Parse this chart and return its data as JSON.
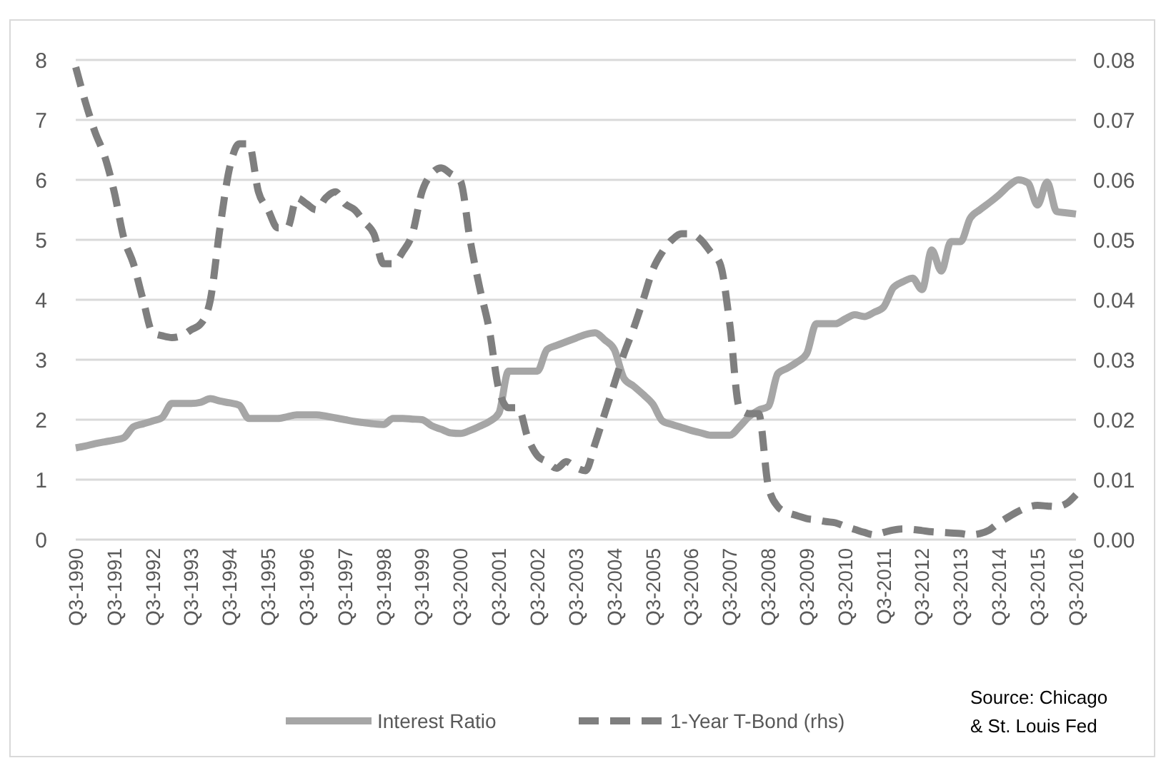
{
  "chart_data": {
    "type": "line",
    "categories": [
      "Q3-1990",
      null,
      null,
      null,
      "Q3-1991",
      null,
      null,
      null,
      "Q3-1992",
      null,
      null,
      null,
      "Q3-1993",
      null,
      null,
      null,
      "Q3-1994",
      null,
      null,
      null,
      "Q3-1995",
      null,
      null,
      null,
      "Q3-1996",
      null,
      null,
      null,
      "Q3-1997",
      null,
      null,
      null,
      "Q3-1998",
      null,
      null,
      null,
      "Q3-1999",
      null,
      null,
      null,
      "Q3-2000",
      null,
      null,
      null,
      "Q3-2001",
      null,
      null,
      null,
      "Q3-2002",
      null,
      null,
      null,
      "Q3-2003",
      null,
      null,
      null,
      "Q3-2004",
      null,
      null,
      null,
      "Q3-2005",
      null,
      null,
      null,
      "Q3-2006",
      null,
      null,
      null,
      "Q3-2007",
      null,
      null,
      null,
      "Q3-2008",
      null,
      null,
      null,
      "Q3-2009",
      null,
      null,
      null,
      "Q3-2010",
      null,
      null,
      null,
      "Q3-2011",
      null,
      null,
      null,
      "Q3-2012",
      null,
      null,
      null,
      "Q3-2013",
      null,
      null,
      null,
      "Q3-2014",
      null,
      null,
      null,
      "Q3-2015",
      null,
      null,
      null,
      "Q3-2016"
    ],
    "ylim": [
      0,
      8
    ],
    "yticks": [
      0,
      1,
      2,
      3,
      4,
      5,
      6,
      7,
      8
    ],
    "y2lim": [
      0,
      0.08
    ],
    "y2ticks": [
      {
        "value": 0,
        "label": "0.00"
      },
      0.01,
      0.02,
      0.03,
      0.04,
      0.05,
      0.06,
      0.07,
      0.08
    ],
    "grid": "y",
    "legend": "bottom",
    "marker": "none",
    "annotations": [
      "Source: Chicago & St. Louis Fed"
    ],
    "series": [
      {
        "name": "Interest Ratio",
        "color": "#a6a6a6",
        "line_style": "solid",
        "values": [
          1.53,
          1.56,
          1.6,
          1.63,
          1.66,
          1.7,
          1.88,
          1.93,
          1.98,
          2.04,
          2.27,
          2.27,
          2.27,
          2.29,
          2.35,
          2.31,
          2.28,
          2.24,
          2.02,
          2.02,
          2.02,
          2.02,
          2.05,
          2.08,
          2.08,
          2.08,
          2.06,
          2.03,
          2.0,
          1.97,
          1.95,
          1.93,
          1.92,
          2.02,
          2.02,
          2.01,
          2.0,
          1.9,
          1.84,
          1.78,
          1.77,
          1.82,
          1.89,
          1.97,
          2.11,
          2.81,
          2.81,
          2.81,
          2.81,
          3.17,
          3.24,
          3.3,
          3.36,
          3.42,
          3.45,
          3.33,
          3.17,
          2.69,
          2.56,
          2.42,
          2.26,
          1.98,
          1.92,
          1.87,
          1.82,
          1.78,
          1.74,
          1.74,
          1.74,
          1.88,
          2.05,
          2.16,
          2.22,
          2.77,
          2.86,
          2.96,
          3.1,
          3.6,
          3.6,
          3.6,
          3.68,
          3.75,
          3.72,
          3.79,
          3.88,
          4.2,
          4.3,
          4.36,
          4.17,
          4.83,
          4.48,
          4.97,
          4.97,
          5.36,
          5.5,
          5.62,
          5.75,
          5.9,
          6.0,
          5.95,
          5.58,
          5.96,
          5.47,
          5.45,
          5.43
        ]
      },
      {
        "name": "1-Year T-Bond (rhs)",
        "color": "#7f7f7f",
        "line_style": "dashed",
        "axis": "y2",
        "values": [
          0.0788,
          0.073,
          0.068,
          0.064,
          0.058,
          0.0503,
          0.046,
          0.04,
          0.0345,
          0.034,
          0.0337,
          0.034,
          0.035,
          0.036,
          0.04,
          0.052,
          0.062,
          0.066,
          0.066,
          0.058,
          0.055,
          0.052,
          0.052,
          0.057,
          0.056,
          0.055,
          0.057,
          0.058,
          0.056,
          0.055,
          0.053,
          0.051,
          0.046,
          0.046,
          0.048,
          0.051,
          0.058,
          0.061,
          0.062,
          0.061,
          0.0598,
          0.05,
          0.042,
          0.035,
          0.025,
          0.022,
          0.022,
          0.017,
          0.014,
          0.013,
          0.0119,
          0.013,
          0.012,
          0.0115,
          0.016,
          0.021,
          0.026,
          0.031,
          0.0352,
          0.04,
          0.045,
          0.048,
          0.05,
          0.051,
          0.051,
          0.05,
          0.048,
          0.046,
          0.036,
          0.022,
          0.021,
          0.021,
          0.009,
          0.0055,
          0.0045,
          0.004,
          0.0035,
          0.0033,
          0.003,
          0.0028,
          0.0022,
          0.0017,
          0.0012,
          0.0008,
          0.0012,
          0.0016,
          0.0018,
          0.0017,
          0.0015,
          0.0013,
          0.0012,
          0.0011,
          0.001,
          0.0008,
          0.001,
          0.0016,
          0.0028,
          0.0038,
          0.0047,
          0.0054,
          0.0057,
          0.0056,
          0.0055,
          0.006,
          0.0075
        ]
      }
    ]
  }
}
